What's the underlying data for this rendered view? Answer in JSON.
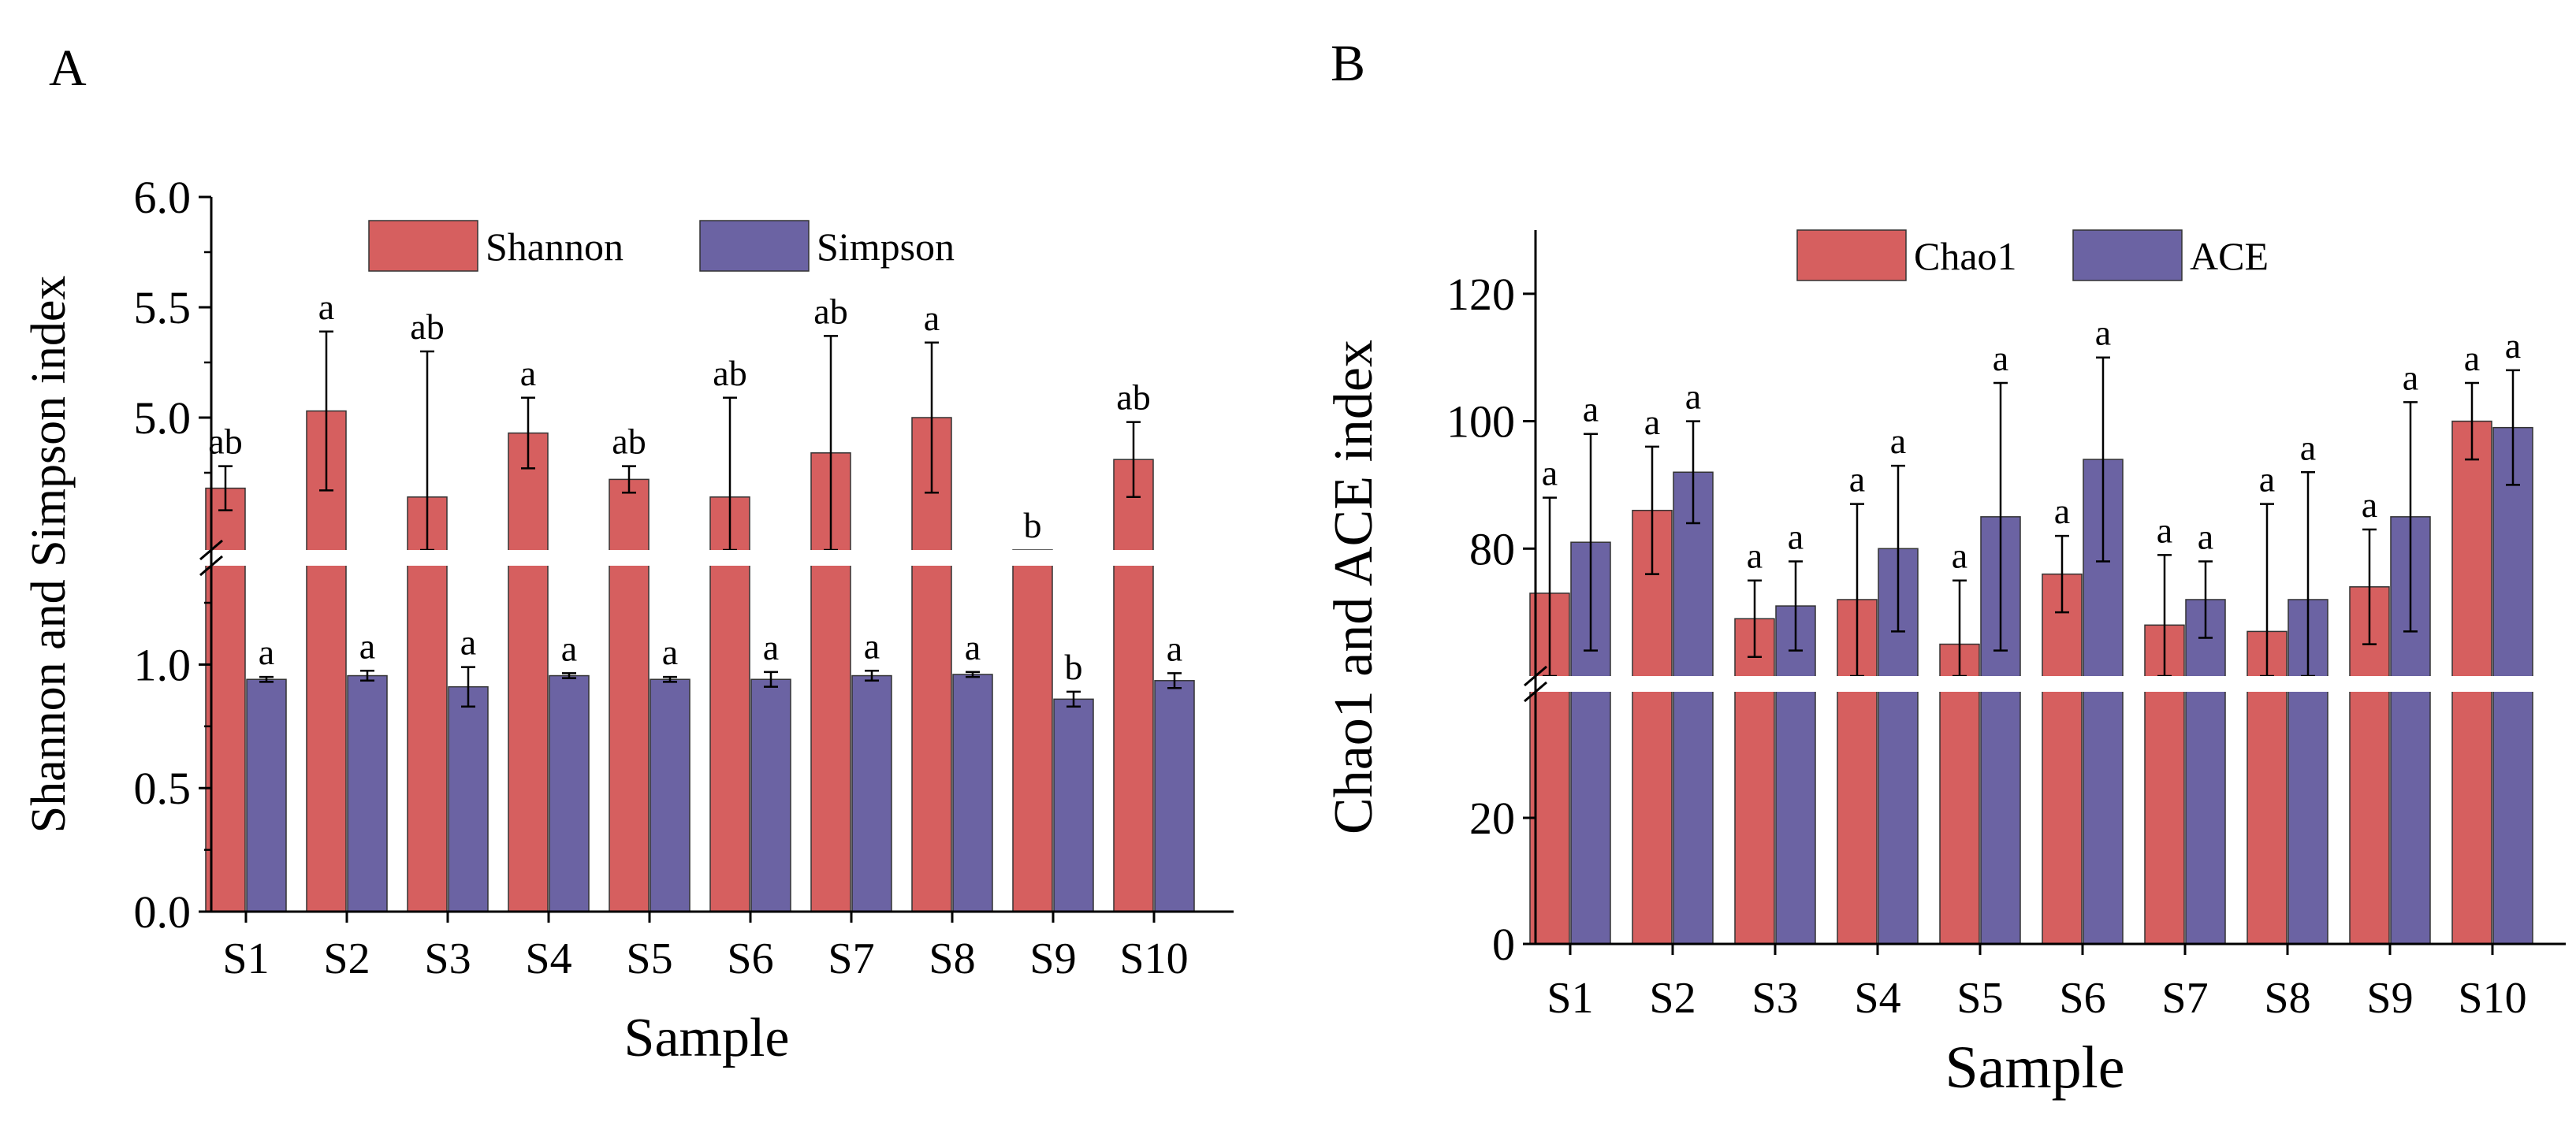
{
  "chart_data": [
    {
      "panel_label": "A",
      "type": "bar",
      "xlabel": "Sample",
      "ylabel": "Shannon and Simpson index",
      "categories": [
        "S1",
        "S2",
        "S3",
        "S4",
        "S5",
        "S6",
        "S7",
        "S8",
        "S9",
        "S10"
      ],
      "y_break": true,
      "ylim_lower": [
        0,
        1.4
      ],
      "ylim_upper": [
        4.4,
        6.0
      ],
      "yticks_lower": [
        "0.0",
        "0.5",
        "1.0"
      ],
      "yticks_upper": [
        "5.0",
        "5.5",
        "6.0"
      ],
      "legend_position": "top-center",
      "series": [
        {
          "name": "Shannon",
          "color": "#d65f5f",
          "values": [
            4.68,
            5.03,
            4.64,
            4.93,
            4.72,
            4.64,
            4.84,
            5.0,
            4.0,
            4.81
          ],
          "errors": [
            0.1,
            0.36,
            0.66,
            0.16,
            0.06,
            0.45,
            0.53,
            0.34,
            0.0,
            0.17
          ],
          "letters": [
            "ab",
            "a",
            "ab",
            "a",
            "ab",
            "ab",
            "ab",
            "a",
            "b",
            "ab"
          ]
        },
        {
          "name": "Simpson",
          "color": "#6b63a3",
          "values": [
            0.94,
            0.955,
            0.91,
            0.955,
            0.94,
            0.94,
            0.955,
            0.96,
            0.86,
            0.935
          ],
          "errors": [
            0.01,
            0.02,
            0.08,
            0.01,
            0.01,
            0.03,
            0.02,
            0.01,
            0.03,
            0.03
          ],
          "letters": [
            "a",
            "a",
            "a",
            "a",
            "a",
            "a",
            "a",
            "a",
            "b",
            "a"
          ]
        }
      ]
    },
    {
      "panel_label": "B",
      "type": "bar",
      "xlabel": "Sample",
      "ylabel": "Chao1 and ACE index",
      "categories": [
        "S1",
        "S2",
        "S3",
        "S4",
        "S5",
        "S6",
        "S7",
        "S8",
        "S9",
        "S10"
      ],
      "y_break": true,
      "ylim_lower": [
        0,
        40
      ],
      "ylim_upper": [
        60,
        130
      ],
      "yticks_lower": [
        "0",
        "20"
      ],
      "yticks_upper": [
        "80",
        "100",
        "120"
      ],
      "legend_position": "top-center",
      "series": [
        {
          "name": "Chao1",
          "color": "#d65f5f",
          "values": [
            73,
            86,
            69,
            72,
            65,
            76,
            68,
            67,
            74,
            100
          ],
          "errors": [
            15,
            10,
            6,
            15,
            10,
            6,
            11,
            20,
            9,
            6
          ],
          "letters": [
            "a",
            "a",
            "a",
            "a",
            "a",
            "a",
            "a",
            "a",
            "a",
            "a"
          ]
        },
        {
          "name": "ACE",
          "color": "#6b63a3",
          "values": [
            81,
            92,
            71,
            80,
            85,
            94,
            72,
            72,
            85,
            99
          ],
          "errors": [
            17,
            8,
            7,
            13,
            21,
            16,
            6,
            20,
            18,
            9
          ],
          "letters": [
            "a",
            "a",
            "a",
            "a",
            "a",
            "a",
            "a",
            "a",
            "a",
            "a"
          ]
        }
      ]
    }
  ]
}
